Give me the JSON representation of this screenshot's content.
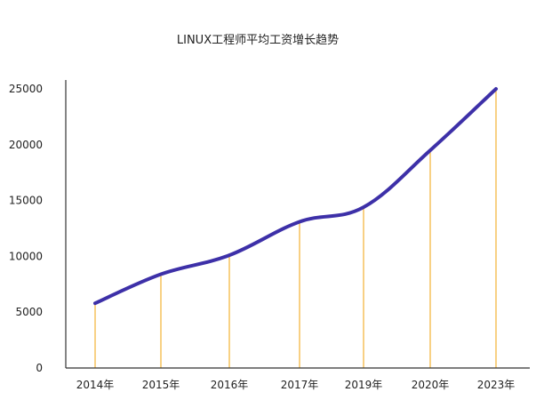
{
  "chart_data": {
    "type": "line",
    "title": "LINUX工程师平均工资增长趋势",
    "xlabel": "",
    "ylabel": "",
    "ylim": [
      0,
      25000
    ],
    "yticks": [
      0,
      5000,
      10000,
      15000,
      20000,
      25000
    ],
    "grid": false,
    "legend": "none",
    "drop_lines": true,
    "colors": {
      "line": "#3d30a8",
      "drop_line": "#f2b233",
      "axis": "#333333",
      "text": "#222222"
    },
    "categories": [
      "2014年",
      "2015年",
      "2016年",
      "2017年",
      "2019年",
      "2020年",
      "2023年"
    ],
    "series": [
      {
        "values": [
          5800,
          8400,
          10100,
          13100,
          14400,
          19500,
          25000
        ]
      }
    ]
  }
}
